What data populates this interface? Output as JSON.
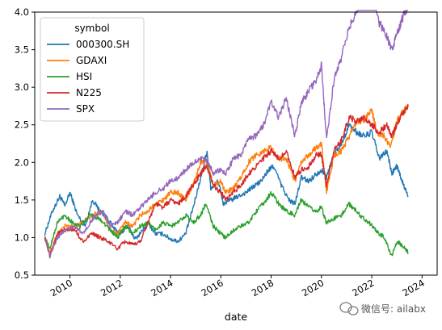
{
  "chart_data": {
    "type": "line",
    "xlabel": "date",
    "ylabel": "",
    "xlim": [
      2008.6,
      2024.6
    ],
    "ylim": [
      0.5,
      4.0
    ],
    "x_ticks": [
      2010,
      2012,
      2014,
      2016,
      2018,
      2020,
      2022,
      2024
    ],
    "x_tick_labels": [
      "2010",
      "2012",
      "2014",
      "2016",
      "2018",
      "2020",
      "2022",
      "2024"
    ],
    "y_ticks": [
      0.5,
      1.0,
      1.5,
      2.0,
      2.5,
      3.0,
      3.5,
      4.0
    ],
    "y_tick_labels": [
      "0.5",
      "1.0",
      "1.5",
      "2.0",
      "2.5",
      "3.0",
      "3.5",
      "4.0"
    ],
    "legend_title": "symbol",
    "legend_position": "top-left",
    "grid": false,
    "series": [
      {
        "name": "000300.SH",
        "color": "#1f77b4",
        "points": [
          [
            2009.0,
            1.05
          ],
          [
            2009.3,
            1.35
          ],
          [
            2009.6,
            1.55
          ],
          [
            2009.8,
            1.42
          ],
          [
            2010.0,
            1.6
          ],
          [
            2010.3,
            1.3
          ],
          [
            2010.6,
            1.15
          ],
          [
            2010.9,
            1.5
          ],
          [
            2011.2,
            1.35
          ],
          [
            2011.5,
            1.25
          ],
          [
            2011.8,
            1.1
          ],
          [
            2012.0,
            1.05
          ],
          [
            2012.3,
            1.15
          ],
          [
            2012.6,
            0.98
          ],
          [
            2012.9,
            1.1
          ],
          [
            2013.1,
            1.2
          ],
          [
            2013.4,
            1.05
          ],
          [
            2013.7,
            1.05
          ],
          [
            2014.0,
            0.98
          ],
          [
            2014.3,
            0.95
          ],
          [
            2014.6,
            1.05
          ],
          [
            2014.9,
            1.4
          ],
          [
            2015.2,
            1.8
          ],
          [
            2015.45,
            2.15
          ],
          [
            2015.6,
            1.65
          ],
          [
            2015.9,
            1.75
          ],
          [
            2016.1,
            1.45
          ],
          [
            2016.4,
            1.5
          ],
          [
            2016.7,
            1.55
          ],
          [
            2017.0,
            1.6
          ],
          [
            2017.3,
            1.68
          ],
          [
            2017.6,
            1.75
          ],
          [
            2017.9,
            1.9
          ],
          [
            2018.1,
            1.95
          ],
          [
            2018.4,
            1.7
          ],
          [
            2018.7,
            1.5
          ],
          [
            2018.95,
            1.45
          ],
          [
            2019.2,
            1.8
          ],
          [
            2019.5,
            1.75
          ],
          [
            2019.8,
            1.85
          ],
          [
            2020.0,
            1.9
          ],
          [
            2020.2,
            1.8
          ],
          [
            2020.5,
            2.1
          ],
          [
            2020.8,
            2.25
          ],
          [
            2021.1,
            2.5
          ],
          [
            2021.4,
            2.4
          ],
          [
            2021.7,
            2.35
          ],
          [
            2022.0,
            2.4
          ],
          [
            2022.3,
            2.05
          ],
          [
            2022.6,
            2.15
          ],
          [
            2022.8,
            1.85
          ],
          [
            2023.0,
            1.95
          ],
          [
            2023.2,
            1.75
          ],
          [
            2023.45,
            1.55
          ]
        ]
      },
      {
        "name": "GDAXI",
        "color": "#ff7f0e",
        "points": [
          [
            2009.0,
            1.0
          ],
          [
            2009.2,
            0.8
          ],
          [
            2009.5,
            1.05
          ],
          [
            2009.8,
            1.15
          ],
          [
            2010.2,
            1.15
          ],
          [
            2010.5,
            1.2
          ],
          [
            2010.9,
            1.3
          ],
          [
            2011.3,
            1.35
          ],
          [
            2011.6,
            1.1
          ],
          [
            2011.9,
            1.05
          ],
          [
            2012.2,
            1.2
          ],
          [
            2012.5,
            1.15
          ],
          [
            2012.8,
            1.3
          ],
          [
            2013.1,
            1.35
          ],
          [
            2013.4,
            1.45
          ],
          [
            2013.7,
            1.5
          ],
          [
            2014.0,
            1.6
          ],
          [
            2014.3,
            1.6
          ],
          [
            2014.6,
            1.5
          ],
          [
            2014.9,
            1.7
          ],
          [
            2015.2,
            2.0
          ],
          [
            2015.4,
            2.05
          ],
          [
            2015.7,
            1.7
          ],
          [
            2016.0,
            1.75
          ],
          [
            2016.2,
            1.6
          ],
          [
            2016.5,
            1.65
          ],
          [
            2016.8,
            1.8
          ],
          [
            2017.1,
            2.0
          ],
          [
            2017.4,
            2.1
          ],
          [
            2017.7,
            2.15
          ],
          [
            2018.0,
            2.2
          ],
          [
            2018.3,
            2.05
          ],
          [
            2018.6,
            2.05
          ],
          [
            2018.95,
            1.75
          ],
          [
            2019.2,
            2.0
          ],
          [
            2019.5,
            2.1
          ],
          [
            2019.8,
            2.2
          ],
          [
            2020.0,
            2.25
          ],
          [
            2020.2,
            1.6
          ],
          [
            2020.5,
            2.1
          ],
          [
            2020.8,
            2.15
          ],
          [
            2021.1,
            2.35
          ],
          [
            2021.4,
            2.55
          ],
          [
            2021.7,
            2.55
          ],
          [
            2022.0,
            2.7
          ],
          [
            2022.2,
            2.4
          ],
          [
            2022.5,
            2.35
          ],
          [
            2022.75,
            2.2
          ],
          [
            2023.0,
            2.55
          ],
          [
            2023.2,
            2.65
          ],
          [
            2023.45,
            2.75
          ]
        ]
      },
      {
        "name": "HSI",
        "color": "#2ca02c",
        "points": [
          [
            2009.0,
            1.0
          ],
          [
            2009.2,
            0.85
          ],
          [
            2009.5,
            1.2
          ],
          [
            2009.8,
            1.3
          ],
          [
            2010.1,
            1.2
          ],
          [
            2010.4,
            1.15
          ],
          [
            2010.8,
            1.3
          ],
          [
            2011.2,
            1.25
          ],
          [
            2011.6,
            1.1
          ],
          [
            2011.9,
            1.0
          ],
          [
            2012.2,
            1.15
          ],
          [
            2012.5,
            1.05
          ],
          [
            2012.8,
            1.15
          ],
          [
            2013.1,
            1.2
          ],
          [
            2013.4,
            1.1
          ],
          [
            2013.7,
            1.2
          ],
          [
            2014.0,
            1.15
          ],
          [
            2014.3,
            1.2
          ],
          [
            2014.6,
            1.3
          ],
          [
            2014.9,
            1.2
          ],
          [
            2015.2,
            1.3
          ],
          [
            2015.4,
            1.45
          ],
          [
            2015.7,
            1.15
          ],
          [
            2016.0,
            1.05
          ],
          [
            2016.2,
            1.0
          ],
          [
            2016.5,
            1.1
          ],
          [
            2016.8,
            1.15
          ],
          [
            2017.1,
            1.2
          ],
          [
            2017.4,
            1.35
          ],
          [
            2017.7,
            1.45
          ],
          [
            2018.0,
            1.6
          ],
          [
            2018.3,
            1.45
          ],
          [
            2018.6,
            1.35
          ],
          [
            2018.95,
            1.3
          ],
          [
            2019.2,
            1.5
          ],
          [
            2019.5,
            1.4
          ],
          [
            2019.8,
            1.35
          ],
          [
            2020.0,
            1.4
          ],
          [
            2020.2,
            1.2
          ],
          [
            2020.5,
            1.25
          ],
          [
            2020.8,
            1.3
          ],
          [
            2021.1,
            1.45
          ],
          [
            2021.3,
            1.38
          ],
          [
            2021.6,
            1.28
          ],
          [
            2021.9,
            1.2
          ],
          [
            2022.2,
            1.08
          ],
          [
            2022.5,
            1.0
          ],
          [
            2022.8,
            0.75
          ],
          [
            2023.0,
            0.95
          ],
          [
            2023.2,
            0.9
          ],
          [
            2023.45,
            0.8
          ]
        ]
      },
      {
        "name": "N225",
        "color": "#d62728",
        "points": [
          [
            2009.0,
            1.0
          ],
          [
            2009.2,
            0.75
          ],
          [
            2009.5,
            1.05
          ],
          [
            2009.8,
            1.1
          ],
          [
            2010.2,
            1.1
          ],
          [
            2010.5,
            0.95
          ],
          [
            2010.9,
            1.05
          ],
          [
            2011.2,
            1.0
          ],
          [
            2011.5,
            0.95
          ],
          [
            2011.9,
            0.85
          ],
          [
            2012.2,
            0.95
          ],
          [
            2012.5,
            0.9
          ],
          [
            2012.8,
            0.95
          ],
          [
            2013.1,
            1.2
          ],
          [
            2013.4,
            1.45
          ],
          [
            2013.7,
            1.4
          ],
          [
            2014.0,
            1.5
          ],
          [
            2014.3,
            1.45
          ],
          [
            2014.6,
            1.55
          ],
          [
            2014.9,
            1.7
          ],
          [
            2015.2,
            1.85
          ],
          [
            2015.4,
            1.95
          ],
          [
            2015.7,
            1.7
          ],
          [
            2016.0,
            1.6
          ],
          [
            2016.2,
            1.5
          ],
          [
            2016.5,
            1.6
          ],
          [
            2016.8,
            1.7
          ],
          [
            2017.1,
            1.85
          ],
          [
            2017.4,
            1.95
          ],
          [
            2017.7,
            2.05
          ],
          [
            2018.0,
            2.15
          ],
          [
            2018.3,
            2.05
          ],
          [
            2018.6,
            2.15
          ],
          [
            2018.95,
            1.8
          ],
          [
            2019.2,
            1.9
          ],
          [
            2019.5,
            1.95
          ],
          [
            2019.8,
            2.1
          ],
          [
            2020.0,
            2.1
          ],
          [
            2020.2,
            1.7
          ],
          [
            2020.5,
            2.15
          ],
          [
            2020.8,
            2.3
          ],
          [
            2021.1,
            2.6
          ],
          [
            2021.4,
            2.55
          ],
          [
            2021.7,
            2.6
          ],
          [
            2022.0,
            2.5
          ],
          [
            2022.3,
            2.4
          ],
          [
            2022.6,
            2.5
          ],
          [
            2022.8,
            2.35
          ],
          [
            2023.0,
            2.5
          ],
          [
            2023.2,
            2.65
          ],
          [
            2023.45,
            2.75
          ]
        ]
      },
      {
        "name": "SPX",
        "color": "#9467bd",
        "points": [
          [
            2009.0,
            1.0
          ],
          [
            2009.2,
            0.75
          ],
          [
            2009.5,
            1.0
          ],
          [
            2009.8,
            1.1
          ],
          [
            2010.2,
            1.15
          ],
          [
            2010.5,
            1.05
          ],
          [
            2010.9,
            1.25
          ],
          [
            2011.3,
            1.35
          ],
          [
            2011.6,
            1.15
          ],
          [
            2011.9,
            1.2
          ],
          [
            2012.2,
            1.35
          ],
          [
            2012.5,
            1.3
          ],
          [
            2012.8,
            1.4
          ],
          [
            2013.1,
            1.5
          ],
          [
            2013.4,
            1.6
          ],
          [
            2013.7,
            1.65
          ],
          [
            2014.0,
            1.75
          ],
          [
            2014.3,
            1.8
          ],
          [
            2014.6,
            1.9
          ],
          [
            2014.9,
            2.0
          ],
          [
            2015.2,
            2.05
          ],
          [
            2015.5,
            2.0
          ],
          [
            2015.7,
            1.85
          ],
          [
            2016.0,
            1.9
          ],
          [
            2016.2,
            1.85
          ],
          [
            2016.5,
            2.05
          ],
          [
            2016.8,
            2.1
          ],
          [
            2017.1,
            2.3
          ],
          [
            2017.4,
            2.35
          ],
          [
            2017.7,
            2.5
          ],
          [
            2018.0,
            2.8
          ],
          [
            2018.3,
            2.6
          ],
          [
            2018.6,
            2.85
          ],
          [
            2018.95,
            2.35
          ],
          [
            2019.2,
            2.8
          ],
          [
            2019.5,
            2.95
          ],
          [
            2019.8,
            3.1
          ],
          [
            2020.0,
            3.3
          ],
          [
            2020.2,
            2.3
          ],
          [
            2020.5,
            3.1
          ],
          [
            2020.8,
            3.4
          ],
          [
            2021.1,
            3.8
          ],
          [
            2021.4,
            4.0
          ],
          [
            2021.7,
            4.3
          ],
          [
            2022.0,
            4.4
          ],
          [
            2022.3,
            3.85
          ],
          [
            2022.5,
            3.75
          ],
          [
            2022.8,
            3.5
          ],
          [
            2023.0,
            3.7
          ],
          [
            2023.2,
            3.9
          ],
          [
            2023.45,
            4.1
          ]
        ]
      }
    ]
  },
  "watermark": {
    "text": "微信号: ailabx",
    "icon": "chat-bubble-icon"
  }
}
